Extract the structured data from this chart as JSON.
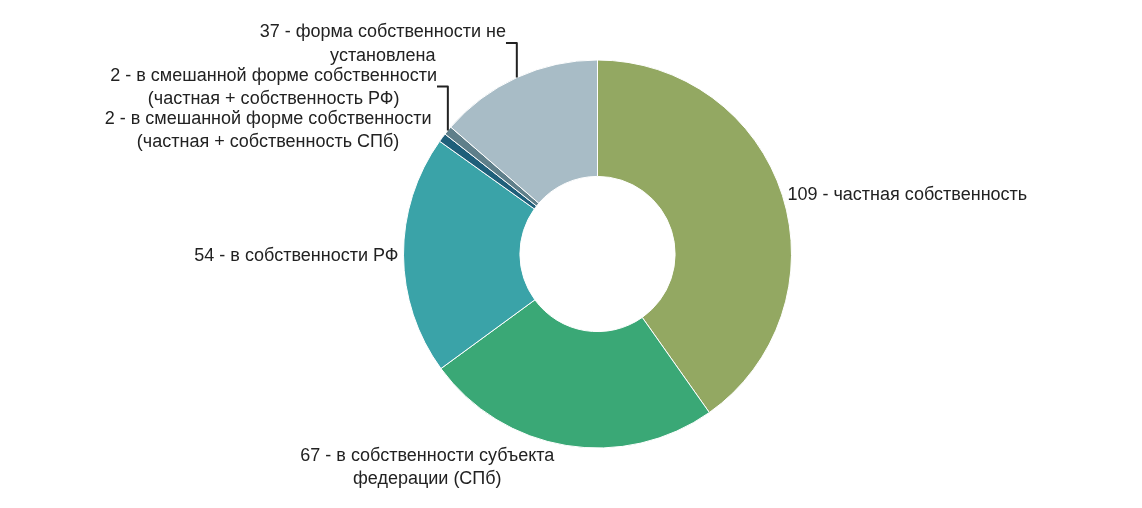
{
  "chart_data": {
    "type": "donut",
    "categories": [
      "109 - частная собственность",
      "67 - в собственности субъекта федерации (СПб)",
      "54 - в собственности РФ",
      "2 - в смешанной форме собственности (частная + собственность СПб)",
      "2 - в смешанной форме собственности (частная + собственность РФ)",
      "37 - форма собственности не установлена"
    ],
    "values": [
      109,
      67,
      54,
      2,
      2,
      37
    ],
    "colors": [
      "#93a862",
      "#3aa876",
      "#3aa3a8",
      "#1f5f7a",
      "#5f7f8a",
      "#a8bcc6"
    ],
    "legend": false
  }
}
